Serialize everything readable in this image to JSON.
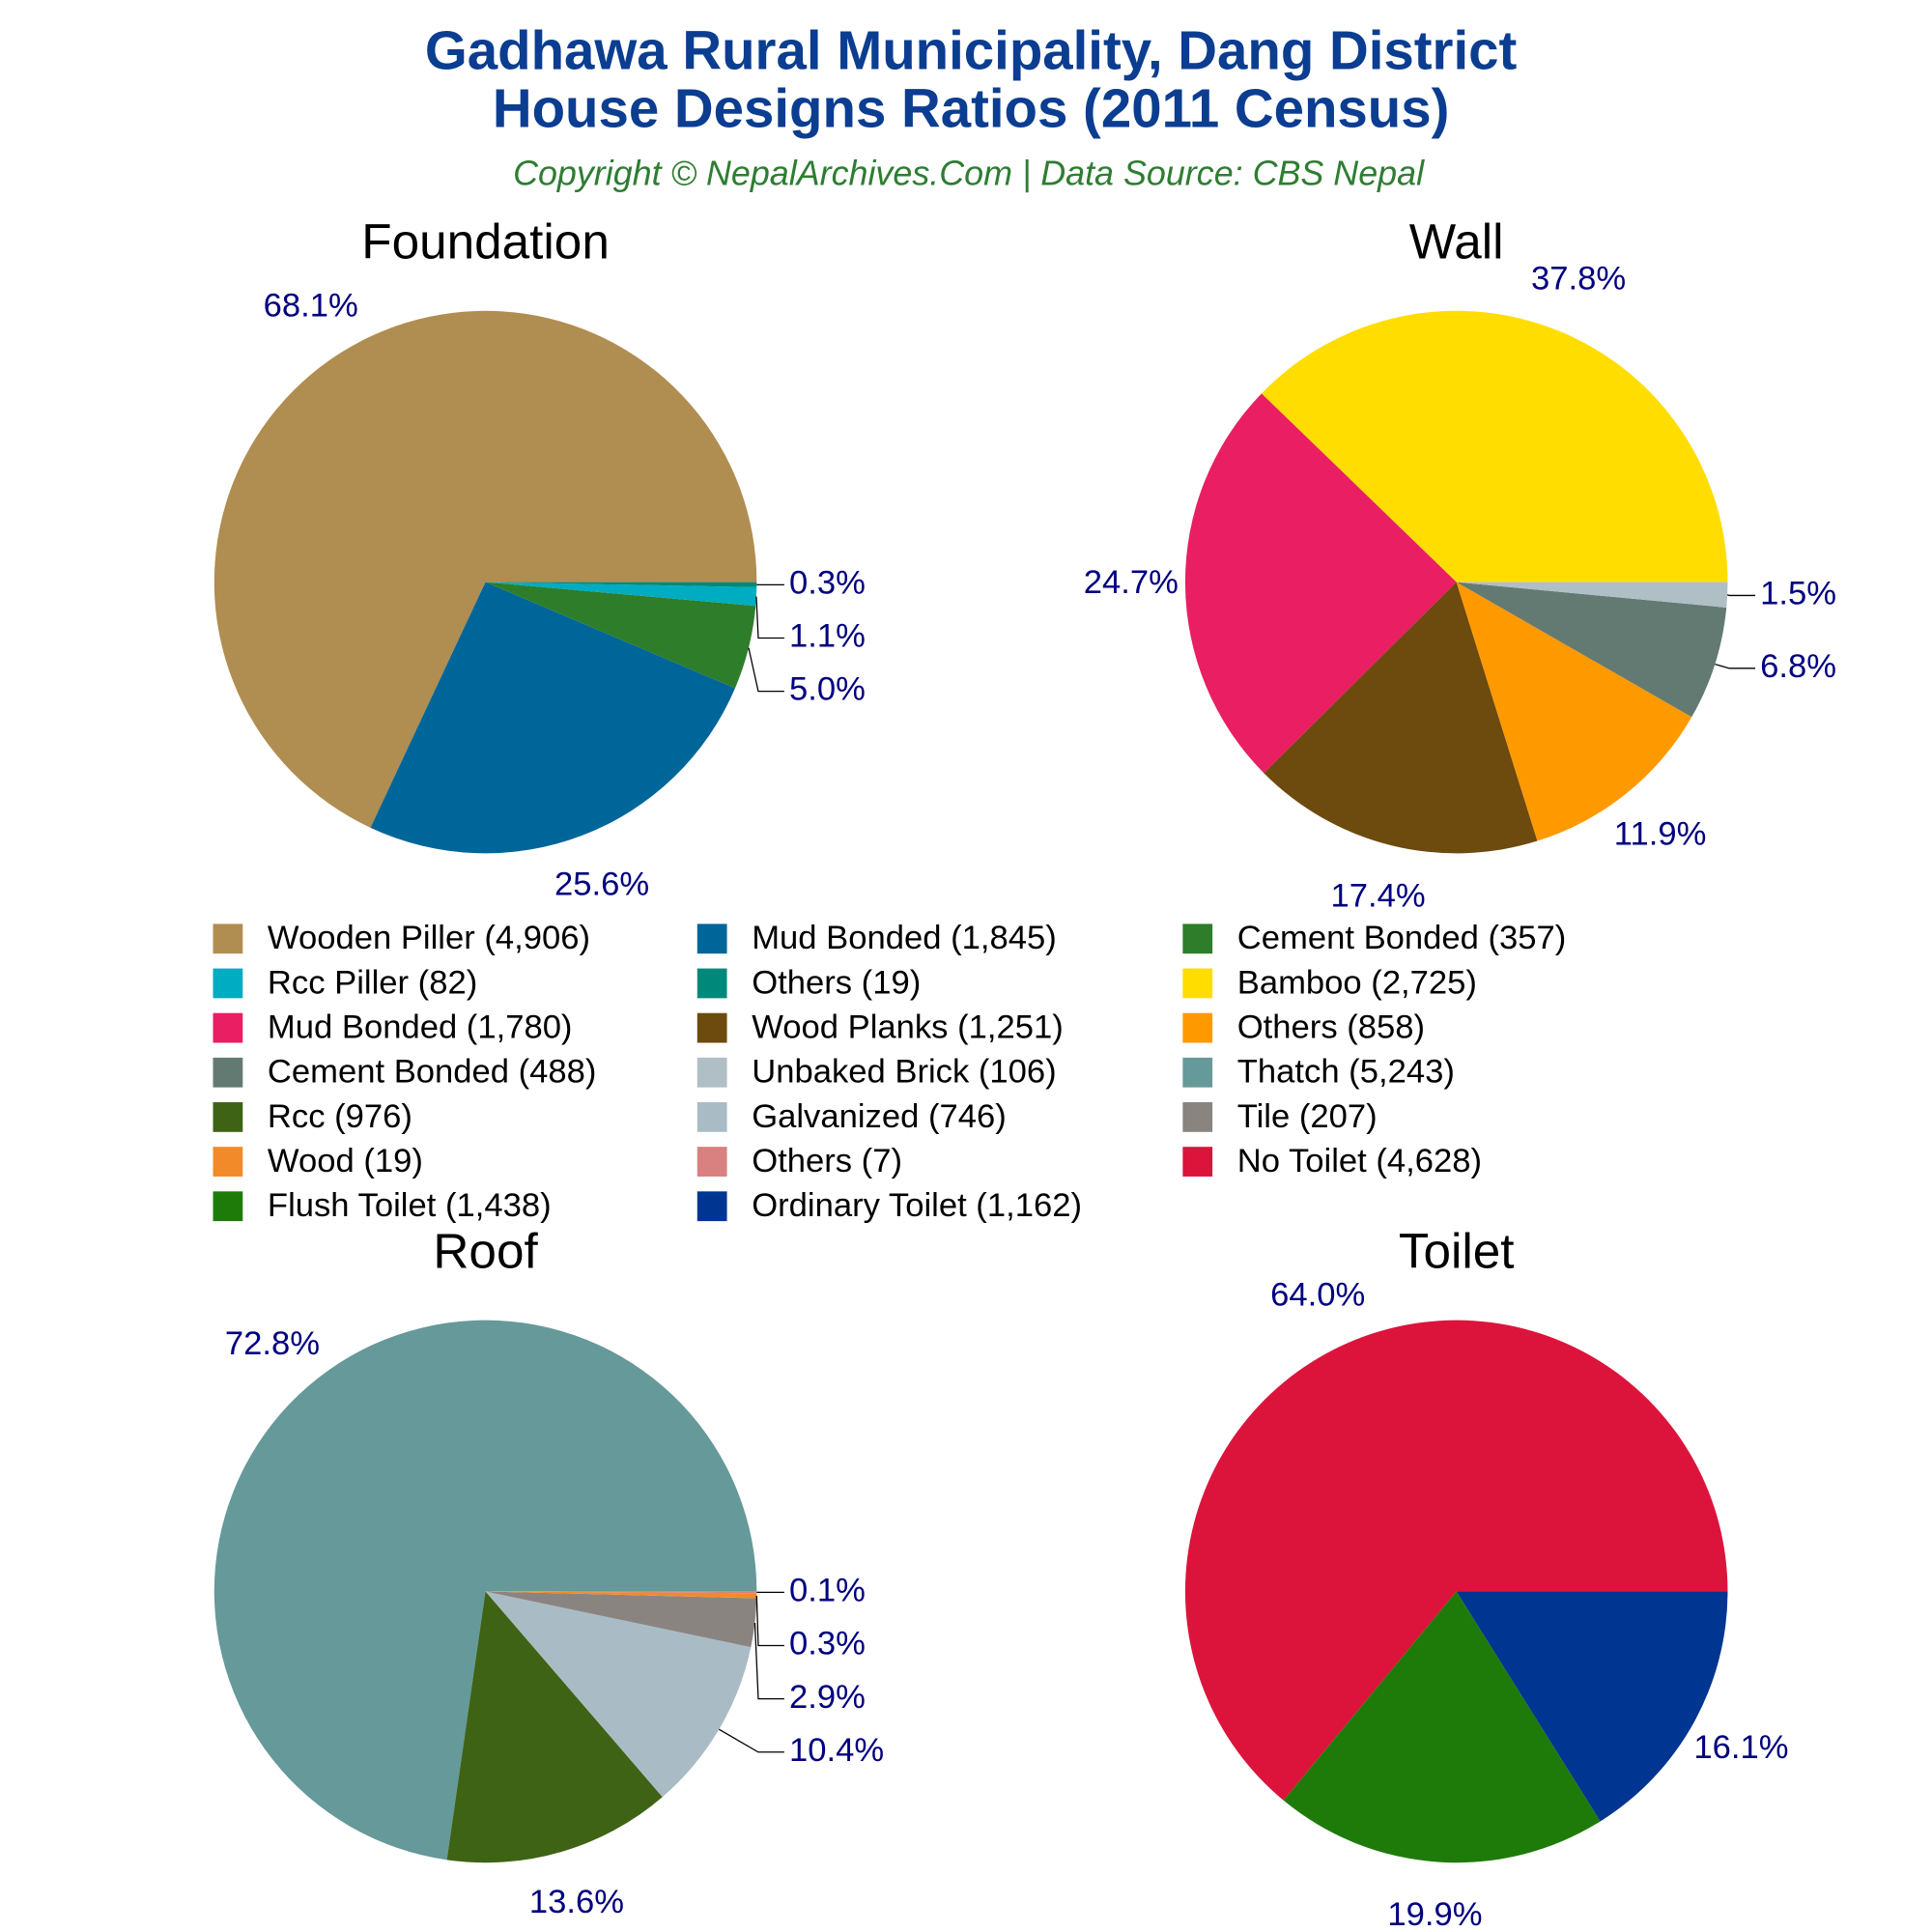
{
  "header": {
    "title": [
      "Gadhawa Rural Municipality, Dang District",
      "House Designs Ratios (2011 Census)"
    ],
    "subtitle": "Copyright © NepalArchives.Com | Data Source: CBS Nepal"
  },
  "chart_data": [
    {
      "type": "pie",
      "title": "Foundation",
      "categories": [
        "Wooden Piller (4,906)",
        "Mud Bonded (1,845)",
        "Cement Bonded (357)",
        "Rcc Piller (82)",
        "Others (19)"
      ],
      "values": [
        68.1,
        25.6,
        5.0,
        1.1,
        0.3
      ],
      "value_labels": [
        "68.1%",
        "25.6%",
        "5.0%",
        "1.1%",
        "0.3%"
      ],
      "colors": [
        "#b08d50",
        "#006699",
        "#2e7d2a",
        "#00acc1",
        "#00897b"
      ]
    },
    {
      "type": "pie",
      "title": "Wall",
      "categories": [
        "Bamboo (2,725)",
        "Mud Bonded (1,780)",
        "Wood Planks (1,251)",
        "Others (858)",
        "Cement Bonded (488)",
        "Unbaked Brick (106)"
      ],
      "values": [
        37.8,
        24.7,
        17.4,
        11.9,
        6.8,
        1.5
      ],
      "value_labels": [
        "37.8%",
        "24.7%",
        "17.4%",
        "11.9%",
        "6.8%",
        "1.5%"
      ],
      "colors": [
        "#ffdd00",
        "#e91e63",
        "#6d4a0d",
        "#ff9900",
        "#637a72",
        "#b0bec5"
      ]
    },
    {
      "type": "pie",
      "title": "Roof",
      "categories": [
        "Thatch (5,243)",
        "Rcc (976)",
        "Galvanized (746)",
        "Tile (207)",
        "Wood (19)",
        "Others (7)"
      ],
      "values": [
        72.8,
        13.6,
        10.4,
        2.9,
        0.3,
        0.1
      ],
      "value_labels": [
        "72.8%",
        "13.6%",
        "10.4%",
        "2.9%",
        "0.3%",
        "0.1%"
      ],
      "colors": [
        "#669999",
        "#3e6314",
        "#a9bcc5",
        "#8a8480",
        "#f28a2a",
        "#d98080"
      ]
    },
    {
      "type": "pie",
      "title": "Toilet",
      "categories": [
        "No Toilet (4,628)",
        "Flush Toilet (1,438)",
        "Ordinary Toilet (1,162)"
      ],
      "values": [
        64.0,
        19.9,
        16.1
      ],
      "value_labels": [
        "64.0%",
        "19.9%",
        "16.1%"
      ],
      "colors": [
        "#dc143c",
        "#1e7b0a",
        "#003591"
      ]
    }
  ]
}
